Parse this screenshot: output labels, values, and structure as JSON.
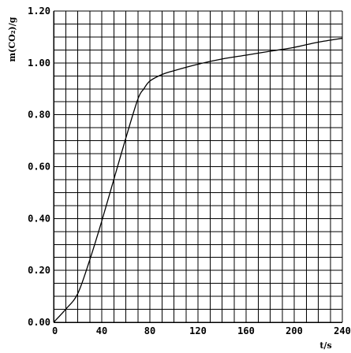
{
  "chart_data": {
    "type": "line",
    "title": "",
    "xlabel": "t/s",
    "ylabel": "m(CO₂)/g",
    "xlim": [
      0,
      240
    ],
    "ylim": [
      0,
      1.2
    ],
    "grid": true,
    "legend": "none",
    "x_ticks": [
      "0",
      "40",
      "80",
      "120",
      "160",
      "200",
      "240"
    ],
    "y_ticks": [
      "0.00",
      "0.20",
      "0.40",
      "0.60",
      "0.80",
      "1.00",
      "1.20"
    ],
    "series": [
      {
        "x": [
          0,
          10,
          20,
          30,
          40,
          50,
          60,
          70,
          75,
          80,
          90,
          100,
          120,
          140,
          160,
          180,
          200,
          220,
          240
        ],
        "y": [
          0,
          0.05,
          0.11,
          0.24,
          0.39,
          0.55,
          0.71,
          0.86,
          0.9,
          0.93,
          0.955,
          0.97,
          0.995,
          1.015,
          1.03,
          1.045,
          1.06,
          1.08,
          1.095
        ]
      }
    ]
  }
}
